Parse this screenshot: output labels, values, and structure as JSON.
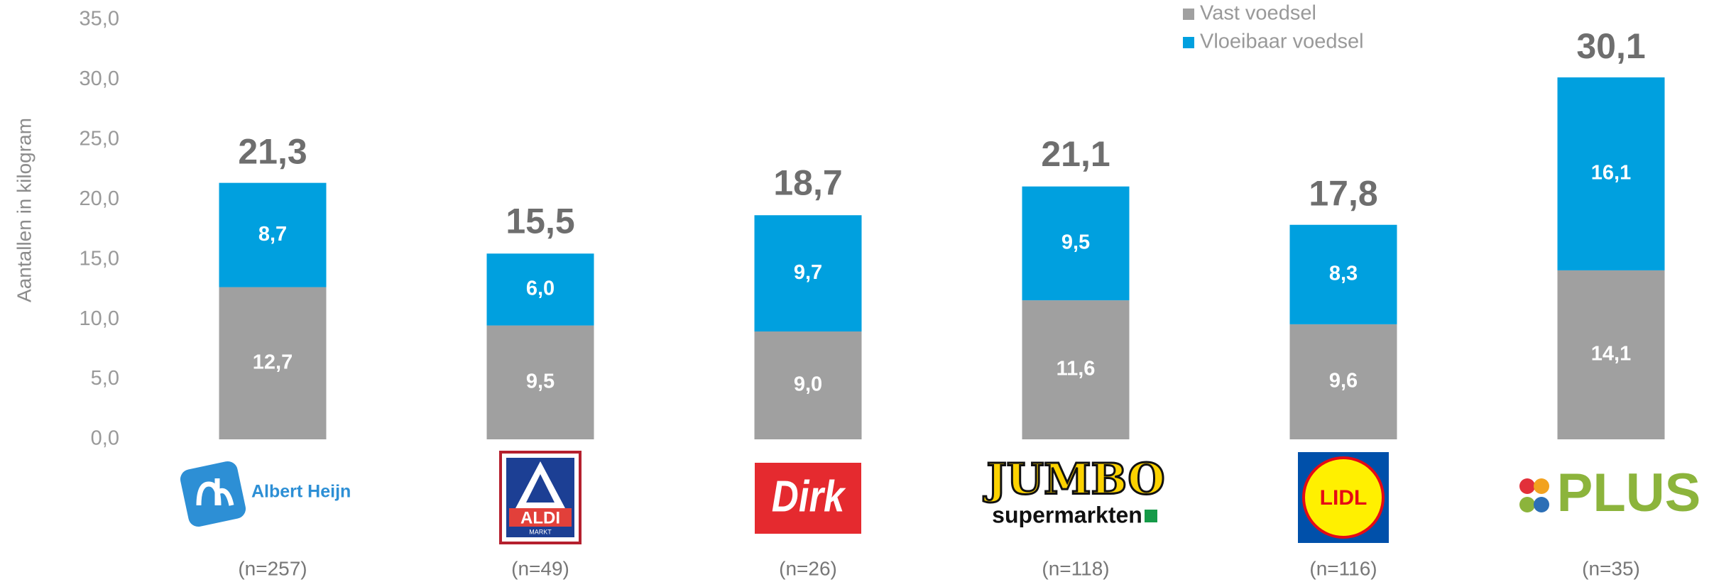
{
  "chart_data": {
    "type": "stacked_bar",
    "y_label": "Aantallen in kilogram",
    "categories": [
      "Albert Heijn",
      "ALDI",
      "Dirk",
      "JUMBO",
      "LIDL",
      "PLUS"
    ],
    "logo_sublabels": [
      null,
      "MARKT",
      null,
      "supermarkten",
      null,
      null
    ],
    "n_labels": [
      "(n=257)",
      "(n=49)",
      "(n=26)",
      "(n=118)",
      "(n=116)",
      "(n=35)"
    ],
    "series": [
      {
        "name": "Vast voedsel",
        "color": "#a0a0a0",
        "values": [
          12.7,
          9.5,
          9.0,
          11.6,
          9.6,
          14.1
        ],
        "value_labels": [
          "12,7",
          "9,5",
          "9,0",
          "11,6",
          "9,6",
          "14,1"
        ]
      },
      {
        "name": "Vloeibaar voedsel",
        "color": "#00a0df",
        "values": [
          8.7,
          6.0,
          9.7,
          9.5,
          8.3,
          16.1
        ],
        "value_labels": [
          "8,7",
          "6,0",
          "9,7",
          "9,5",
          "8,3",
          "16,1"
        ]
      }
    ],
    "totals": [
      21.3,
      15.5,
      18.7,
      21.1,
      17.8,
      30.1
    ],
    "total_labels": [
      "21,3",
      "15,5",
      "18,7",
      "21,1",
      "17,8",
      "30,1"
    ],
    "ylim": [
      0,
      35
    ],
    "yticks": [
      {
        "value": 0,
        "label": "0,0"
      },
      {
        "value": 5,
        "label": "5,0"
      },
      {
        "value": 10,
        "label": "10,0"
      },
      {
        "value": 15,
        "label": "15,0"
      },
      {
        "value": 20,
        "label": "20,0"
      },
      {
        "value": 25,
        "label": "25,0"
      },
      {
        "value": 30,
        "label": "30,0"
      },
      {
        "value": 35,
        "label": "35,0"
      }
    ],
    "grid": false,
    "legend": "top-right"
  }
}
